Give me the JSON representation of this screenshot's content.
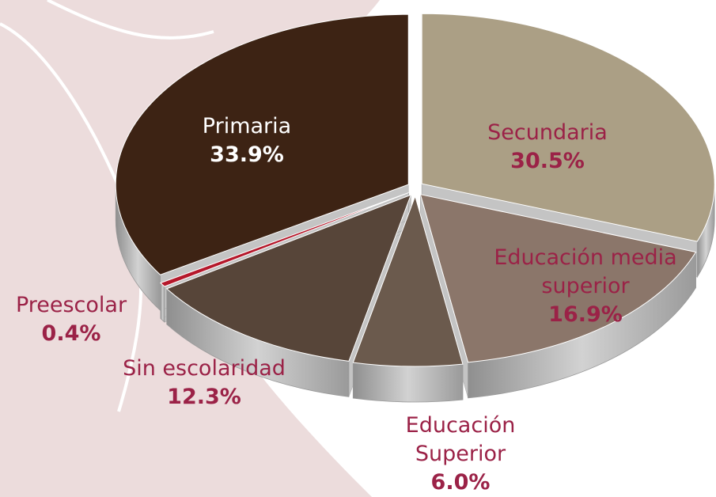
{
  "chart_data": {
    "type": "pie",
    "categories": [
      "Secundaria",
      "Educación media superior",
      "Educación Superior",
      "Sin escolaridad",
      "Preescolar",
      "Primaria"
    ],
    "values": [
      30.5,
      16.9,
      6.0,
      12.3,
      0.4,
      33.9
    ],
    "value_labels": [
      "30.5%",
      "16.9%",
      "6.0%",
      "12.3%",
      "0.4%",
      "33.9%"
    ],
    "colors": [
      "#ab9f85",
      "#8b766a",
      "#6b5a4d",
      "#574539",
      "#b5182b",
      "#3d2314"
    ]
  }
}
